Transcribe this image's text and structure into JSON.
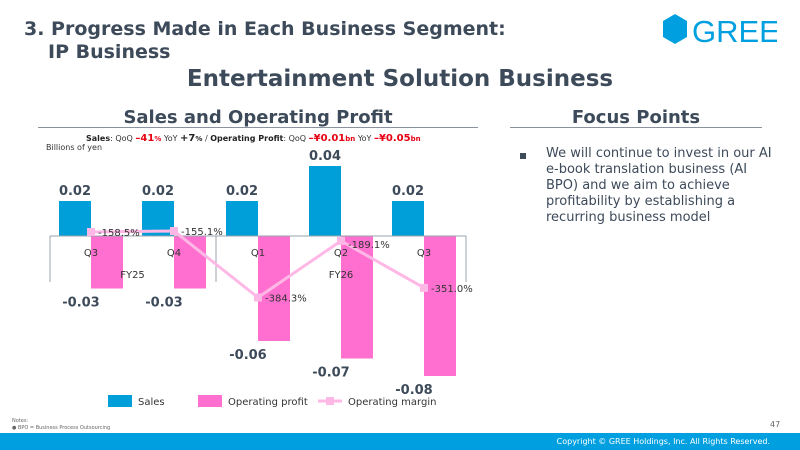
{
  "slide": {
    "section_title_line1": "3. Progress Made in Each Business Segment:",
    "section_title_line2": "IP Business",
    "logo_text": "GREE",
    "main_title": "Entertainment Solution Business",
    "left_heading": "Sales and Operating Profit",
    "right_heading": "Focus Points",
    "focus_points": [
      "We will continue to invest in our AI e-book translation business (AI BPO) and we aim to achieve profitability by establishing a recurring business model"
    ],
    "summary": {
      "sales_label": "Sales",
      "qoq_label": "QoQ",
      "yoy_label": "YoY",
      "sales_qoq_value": "–41",
      "sales_qoq_unit": "%",
      "sales_yoy_value": "+7",
      "sales_yoy_unit": "%",
      "separator": "/",
      "op_label": "Operating Profit",
      "op_qoq_value": "–¥0.01",
      "op_qoq_unit": "bn",
      "op_yoy_value": "–¥0.05",
      "op_yoy_unit": "bn"
    },
    "notes_label": "Notes:",
    "notes": [
      "BPO = Business Process Outsourcing"
    ],
    "page_number": "47",
    "copyright": "Copyright © GREE Holdings, Inc. All Rights Reserved.",
    "colors": {
      "sales": "#009fd9",
      "operating_profit": "#ff6fcf",
      "operating_margin": "#ffb8e6",
      "text": "#3d4a5a",
      "footer": "#00a0e0",
      "logo": "#00a0e0"
    }
  },
  "chart_data": {
    "type": "bar",
    "units": "Billions of yen",
    "categories": [
      "Q3",
      "Q4",
      "Q1",
      "Q2",
      "Q3"
    ],
    "groups": [
      {
        "label": "FY25",
        "span": [
          0,
          1
        ]
      },
      {
        "label": "FY26",
        "span": [
          2,
          4
        ]
      }
    ],
    "series": [
      {
        "name": "Sales",
        "kind": "bar",
        "values": [
          0.02,
          0.02,
          0.02,
          0.04,
          0.02
        ],
        "labels": [
          "0.02",
          "0.02",
          "0.02",
          "0.04",
          "0.02"
        ]
      },
      {
        "name": "Operating profit",
        "kind": "bar",
        "values": [
          -0.03,
          -0.03,
          -0.06,
          -0.07,
          -0.08
        ],
        "labels": [
          "-0.03",
          "-0.03",
          "-0.06",
          "-0.07",
          "-0.08"
        ]
      },
      {
        "name": "Operating margin",
        "kind": "line",
        "values": [
          -158.5,
          -155.1,
          -384.3,
          -189.1,
          -351.0
        ],
        "labels": [
          "-158.5%",
          "-155.1%",
          "-384.3%",
          "-189.1%",
          "-351.0%"
        ]
      }
    ],
    "legend_position": "bottom",
    "grid": false
  }
}
